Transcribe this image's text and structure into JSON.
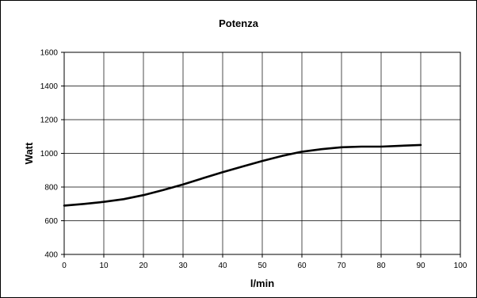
{
  "chart_data": {
    "type": "line",
    "title": "Potenza",
    "xlabel": "l/min",
    "ylabel": "Watt",
    "xlim": [
      0,
      100
    ],
    "ylim": [
      400,
      1600
    ],
    "xticks": [
      0,
      10,
      20,
      30,
      40,
      50,
      60,
      70,
      80,
      90,
      100
    ],
    "yticks": [
      400,
      600,
      800,
      1000,
      1200,
      1400,
      1600
    ],
    "grid": true,
    "legend": "none",
    "series": [
      {
        "color": "#000000",
        "x": [
          0,
          5,
          10,
          15,
          20,
          25,
          30,
          35,
          40,
          45,
          50,
          55,
          60,
          65,
          70,
          75,
          80,
          85,
          90
        ],
        "y": [
          690,
          700,
          712,
          728,
          752,
          782,
          815,
          852,
          888,
          922,
          955,
          985,
          1010,
          1025,
          1036,
          1040,
          1040,
          1045,
          1050
        ]
      }
    ]
  }
}
